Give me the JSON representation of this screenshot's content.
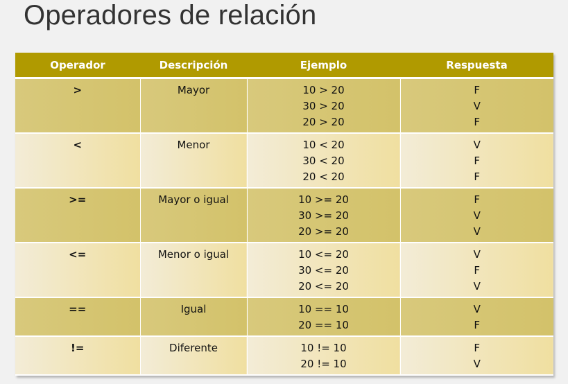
{
  "title": "Operadores de relación",
  "table": {
    "headers": [
      "Operador",
      "Descripción",
      "Ejemplo",
      "Respuesta"
    ],
    "rows": [
      {
        "operador": ">",
        "descripcion": "Mayor",
        "ejemplos": [
          "10 > 20",
          "30 > 20",
          "20 > 20"
        ],
        "respuestas": [
          "F",
          "V",
          "F"
        ]
      },
      {
        "operador": "<",
        "descripcion": "Menor",
        "ejemplos": [
          "10 < 20",
          "30 < 20",
          "20 < 20"
        ],
        "respuestas": [
          "V",
          "F",
          "F"
        ]
      },
      {
        "operador": ">=",
        "descripcion": "Mayor o igual",
        "ejemplos": [
          "10 >= 20",
          "30 >= 20",
          "20 >= 20"
        ],
        "respuestas": [
          "F",
          "V",
          "V"
        ]
      },
      {
        "operador": "<=",
        "descripcion": "Menor o igual",
        "ejemplos": [
          "10 <= 20",
          "30 <= 20",
          "20 <= 20"
        ],
        "respuestas": [
          "V",
          "F",
          "V"
        ]
      },
      {
        "operador": "==",
        "descripcion": "Igual",
        "ejemplos": [
          "10 == 10",
          "20 == 10"
        ],
        "respuestas": [
          "V",
          "F"
        ]
      },
      {
        "operador": "!=",
        "descripcion": "Diferente",
        "ejemplos": [
          "10 != 10",
          "20 != 10"
        ],
        "respuestas": [
          "F",
          "V"
        ]
      }
    ]
  },
  "colors": {
    "header": "#b09a00",
    "row_dark": "#d6c673",
    "row_light": "#f2e8c8",
    "title": "#333333"
  }
}
